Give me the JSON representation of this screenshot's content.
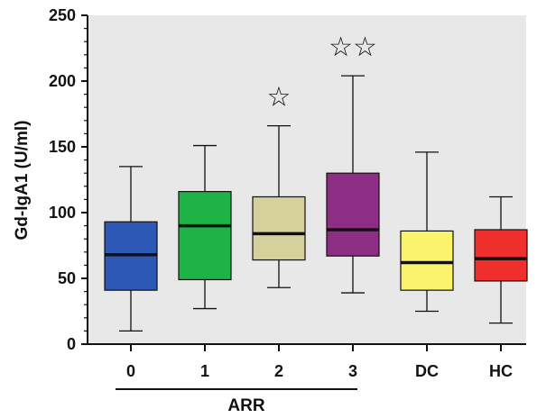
{
  "chart_data": {
    "type": "box",
    "xlabel": "",
    "ylabel": "Gd-IgA1 (U/ml)",
    "ylim": [
      0,
      250
    ],
    "yticks": [
      "0",
      "50",
      "100",
      "150",
      "200",
      "250"
    ],
    "grid": false,
    "plot_background": "#e8e8e8",
    "categories": [
      "0",
      "1",
      "2",
      "3",
      "DC",
      "HC"
    ],
    "boxes": [
      {
        "category": "0",
        "min": 10,
        "q1": 41,
        "median": 68,
        "q3": 93,
        "max": 135,
        "color": "#2e58b6",
        "significance": ""
      },
      {
        "category": "1",
        "min": 27,
        "q1": 49,
        "median": 90,
        "q3": 116,
        "max": 151,
        "color": "#1fb246",
        "significance": ""
      },
      {
        "category": "2",
        "min": 43,
        "q1": 64,
        "median": 84,
        "q3": 112,
        "max": 166,
        "color": "#d6d09c",
        "significance": "☆"
      },
      {
        "category": "3",
        "min": 39,
        "q1": 67,
        "median": 87,
        "q3": 130,
        "max": 204,
        "color": "#8e2d84",
        "significance": "☆☆"
      },
      {
        "category": "DC",
        "min": 25,
        "q1": 41,
        "median": 62,
        "q3": 86,
        "max": 146,
        "color": "#fbf36c",
        "significance": ""
      },
      {
        "category": "HC",
        "min": 16,
        "q1": 48,
        "median": 65,
        "q3": 87,
        "max": 112,
        "color": "#ee2f2c",
        "significance": ""
      }
    ],
    "group_bracket": {
      "label": "ARR",
      "spans": [
        "0",
        "3"
      ]
    }
  }
}
